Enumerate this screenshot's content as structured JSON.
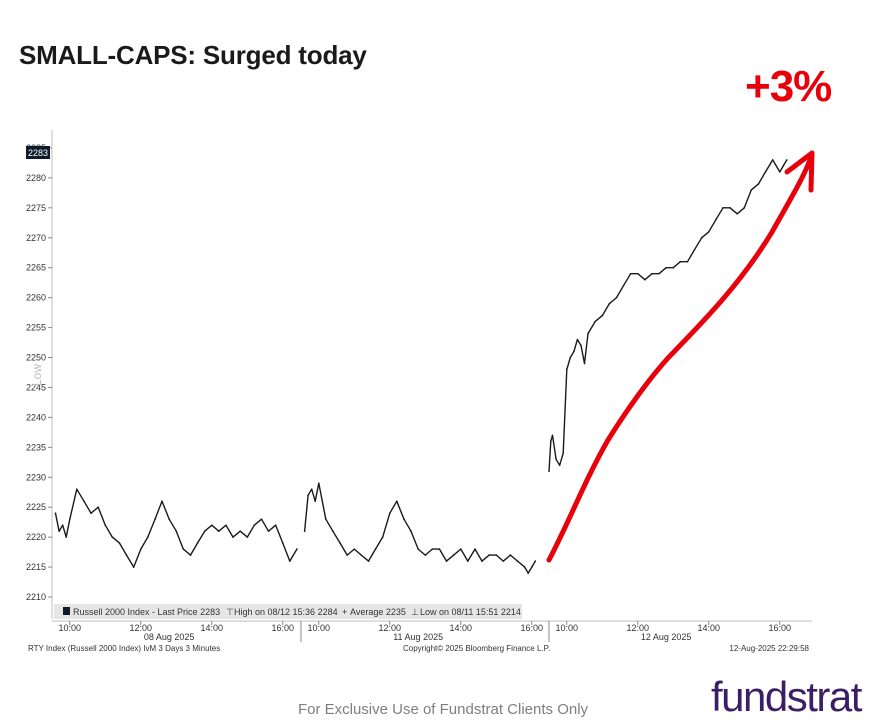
{
  "title": "SMALL-CAPS: Surged today",
  "annotation": "+3%",
  "footer": "For Exclusive Use of Fundstrat Clients Only",
  "brand": "fundstrat",
  "colors": {
    "price_line": "#1a1a1a",
    "arrow": "#e8000b",
    "brand": "#3b1f66",
    "grid_text": "#333333"
  },
  "chart_data": {
    "type": "line",
    "series_name": "Russell 2000 Index",
    "y_axis_label": "Low",
    "ylim": [
      2209,
      2288
    ],
    "y_ticks": [
      2210,
      2215,
      2220,
      2225,
      2230,
      2235,
      2240,
      2245,
      2250,
      2255,
      2260,
      2265,
      2270,
      2275,
      2280,
      2285
    ],
    "last_price_tag": "2283",
    "day_labels": [
      "08 Aug 2025",
      "11 Aug 2025",
      "12 Aug 2025"
    ],
    "time_ticks": [
      {
        "label": "10:00",
        "day": 0,
        "hour": 10
      },
      {
        "label": "12:00",
        "day": 0,
        "hour": 12
      },
      {
        "label": "14:00",
        "day": 0,
        "hour": 14
      },
      {
        "label": "16:00",
        "day": 0,
        "hour": 16
      },
      {
        "label": "10:00",
        "day": 1,
        "hour": 10
      },
      {
        "label": "12:00",
        "day": 1,
        "hour": 12
      },
      {
        "label": "14:00",
        "day": 1,
        "hour": 14
      },
      {
        "label": "16:00",
        "day": 1,
        "hour": 16
      },
      {
        "label": "10:00",
        "day": 2,
        "hour": 10
      },
      {
        "label": "12:00",
        "day": 2,
        "hour": 12
      },
      {
        "label": "14:00",
        "day": 2,
        "hour": 14
      },
      {
        "label": "16:00",
        "day": 2,
        "hour": 16
      }
    ],
    "series": [
      {
        "name": "08 Aug 2025",
        "day": 0,
        "points": [
          [
            9.6,
            2224
          ],
          [
            9.7,
            2221
          ],
          [
            9.8,
            2222
          ],
          [
            9.9,
            2220
          ],
          [
            10.0,
            2223
          ],
          [
            10.2,
            2228
          ],
          [
            10.4,
            2226
          ],
          [
            10.6,
            2224
          ],
          [
            10.8,
            2225
          ],
          [
            11.0,
            2222
          ],
          [
            11.2,
            2220
          ],
          [
            11.4,
            2219
          ],
          [
            11.6,
            2217
          ],
          [
            11.8,
            2215
          ],
          [
            12.0,
            2218
          ],
          [
            12.2,
            2220
          ],
          [
            12.4,
            2223
          ],
          [
            12.6,
            2226
          ],
          [
            12.8,
            2223
          ],
          [
            13.0,
            2221
          ],
          [
            13.2,
            2218
          ],
          [
            13.4,
            2217
          ],
          [
            13.6,
            2219
          ],
          [
            13.8,
            2221
          ],
          [
            14.0,
            2222
          ],
          [
            14.2,
            2221
          ],
          [
            14.4,
            2222
          ],
          [
            14.6,
            2220
          ],
          [
            14.8,
            2221
          ],
          [
            15.0,
            2220
          ],
          [
            15.2,
            2222
          ],
          [
            15.4,
            2223
          ],
          [
            15.6,
            2221
          ],
          [
            15.8,
            2222
          ],
          [
            16.0,
            2219
          ],
          [
            16.2,
            2216
          ],
          [
            16.4,
            2218
          ]
        ]
      },
      {
        "name": "11 Aug 2025",
        "day": 1,
        "points": [
          [
            9.6,
            2221
          ],
          [
            9.7,
            2227
          ],
          [
            9.8,
            2228
          ],
          [
            9.9,
            2226
          ],
          [
            10.0,
            2229
          ],
          [
            10.2,
            2223
          ],
          [
            10.4,
            2221
          ],
          [
            10.6,
            2219
          ],
          [
            10.8,
            2217
          ],
          [
            11.0,
            2218
          ],
          [
            11.2,
            2217
          ],
          [
            11.4,
            2216
          ],
          [
            11.6,
            2218
          ],
          [
            11.8,
            2220
          ],
          [
            12.0,
            2224
          ],
          [
            12.2,
            2226
          ],
          [
            12.4,
            2223
          ],
          [
            12.6,
            2221
          ],
          [
            12.8,
            2218
          ],
          [
            13.0,
            2217
          ],
          [
            13.2,
            2218
          ],
          [
            13.4,
            2218
          ],
          [
            13.6,
            2216
          ],
          [
            13.8,
            2217
          ],
          [
            14.0,
            2218
          ],
          [
            14.2,
            2216
          ],
          [
            14.4,
            2218
          ],
          [
            14.6,
            2216
          ],
          [
            14.8,
            2217
          ],
          [
            15.0,
            2217
          ],
          [
            15.2,
            2216
          ],
          [
            15.4,
            2217
          ],
          [
            15.6,
            2216
          ],
          [
            15.8,
            2215
          ],
          [
            15.9,
            2214
          ],
          [
            16.0,
            2215
          ],
          [
            16.1,
            2216
          ]
        ]
      },
      {
        "name": "12 Aug 2025",
        "day": 2,
        "points": [
          [
            9.5,
            2231
          ],
          [
            9.55,
            2236
          ],
          [
            9.6,
            2237
          ],
          [
            9.7,
            2233
          ],
          [
            9.8,
            2232
          ],
          [
            9.9,
            2234
          ],
          [
            10.0,
            2248
          ],
          [
            10.1,
            2250
          ],
          [
            10.2,
            2251
          ],
          [
            10.3,
            2253
          ],
          [
            10.4,
            2252
          ],
          [
            10.5,
            2249
          ],
          [
            10.6,
            2254
          ],
          [
            10.8,
            2256
          ],
          [
            11.0,
            2257
          ],
          [
            11.2,
            2259
          ],
          [
            11.4,
            2260
          ],
          [
            11.6,
            2262
          ],
          [
            11.8,
            2264
          ],
          [
            12.0,
            2264
          ],
          [
            12.2,
            2263
          ],
          [
            12.4,
            2264
          ],
          [
            12.6,
            2264
          ],
          [
            12.8,
            2265
          ],
          [
            13.0,
            2265
          ],
          [
            13.2,
            2266
          ],
          [
            13.4,
            2266
          ],
          [
            13.6,
            2268
          ],
          [
            13.8,
            2270
          ],
          [
            14.0,
            2271
          ],
          [
            14.2,
            2273
          ],
          [
            14.4,
            2275
          ],
          [
            14.6,
            2275
          ],
          [
            14.8,
            2274
          ],
          [
            15.0,
            2275
          ],
          [
            15.2,
            2278
          ],
          [
            15.4,
            2279
          ],
          [
            15.6,
            2281
          ],
          [
            15.8,
            2283
          ],
          [
            16.0,
            2281
          ],
          [
            16.1,
            2282
          ],
          [
            16.2,
            2283
          ]
        ]
      }
    ],
    "legend": {
      "series": "Russell 2000 Index - Last Price 2283",
      "high": "High on 08/12 15:36 2284",
      "average": "Average 2235",
      "low": "Low on 08/11 15:51 2214"
    },
    "bottom_left": "RTY Index (Russell 2000 Index) IvM 3 Days 3 Minutes",
    "bottom_center": "Copyright© 2025 Bloomberg Finance L.P.",
    "bottom_right": "12-Aug-2025 22:29:58"
  }
}
